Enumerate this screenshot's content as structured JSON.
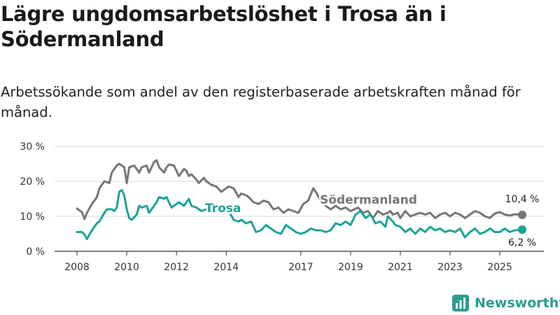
{
  "title": "Lägre ungdomsarbetslöshet i Trosa än i Södermanland",
  "subtitle": "Arbetssökande som andel av den registerbaserade arbetskraften månad för månad.",
  "brand": "Newsworthy",
  "colors": {
    "sodermanland": "#767676",
    "trosa": "#1ba396",
    "grid": "#d9d9d9",
    "axis": "#333333",
    "brand": "#2a9d8f"
  },
  "chart_data": {
    "type": "line",
    "title": "Lägre ungdomsarbetslöshet i Trosa än i Södermanland",
    "subtitle": "Arbetssökande som andel av den registerbaserade arbetskraften månad för månad.",
    "xlabel": "",
    "ylabel": "",
    "xlim": [
      2008.0,
      2025.9
    ],
    "ylim": [
      0,
      30
    ],
    "yticks": [
      0,
      10,
      20,
      30
    ],
    "ytick_labels": [
      "0 %",
      "10 %",
      "20 %",
      "30 %"
    ],
    "xticks": [
      2008,
      2010,
      2012,
      2014,
      2017,
      2019,
      2021,
      2023,
      2025
    ],
    "xtick_labels": [
      "2008",
      "2010",
      "2012",
      "2014",
      "2017",
      "2019",
      "2021",
      "2023",
      "2025"
    ],
    "grid": true,
    "series": [
      {
        "name": "Södermanland",
        "label": "Södermanland",
        "end_label": "10,4 %",
        "x": [
          2008.0,
          2008.2,
          2008.3,
          2008.4,
          2008.6,
          2008.8,
          2008.9,
          2009.1,
          2009.3,
          2009.4,
          2009.5,
          2009.6,
          2009.7,
          2009.8,
          2009.9,
          2010.0,
          2010.1,
          2010.3,
          2010.4,
          2010.5,
          2010.6,
          2010.8,
          2010.9,
          2011.1,
          2011.2,
          2011.3,
          2011.5,
          2011.6,
          2011.7,
          2011.9,
          2012.0,
          2012.1,
          2012.3,
          2012.4,
          2012.5,
          2012.6,
          2012.8,
          2012.9,
          2013.1,
          2013.2,
          2013.4,
          2013.6,
          2013.8,
          2013.9,
          2014.1,
          2014.3,
          2014.5,
          2014.6,
          2014.8,
          2014.9,
          2015.1,
          2015.3,
          2015.5,
          2015.7,
          2015.9,
          2016.1,
          2016.3,
          2016.5,
          2016.7,
          2016.9,
          2017.1,
          2017.3,
          2017.5,
          2017.6,
          2017.8,
          2018.0,
          2018.2,
          2018.4,
          2018.6,
          2018.8,
          2019.0,
          2019.3,
          2019.5,
          2019.7,
          2019.9,
          2020.1,
          2020.3,
          2020.5,
          2020.6,
          2020.7,
          2020.9,
          2021.0,
          2021.2,
          2021.4,
          2021.6,
          2021.8,
          2022.0,
          2022.2,
          2022.4,
          2022.6,
          2022.8,
          2023.0,
          2023.2,
          2023.4,
          2023.6,
          2023.8,
          2024.0,
          2024.2,
          2024.4,
          2024.6,
          2024.8,
          2025.0,
          2025.2,
          2025.4,
          2025.6,
          2025.9
        ],
        "values": [
          12.2,
          11.2,
          9.2,
          11.0,
          13.5,
          15.5,
          18.0,
          20.0,
          19.5,
          22.5,
          23.5,
          24.5,
          25.0,
          24.5,
          24.0,
          19.5,
          24.0,
          24.5,
          23.5,
          22.5,
          24.0,
          24.5,
          22.5,
          25.5,
          26.0,
          24.0,
          22.5,
          24.0,
          24.8,
          24.5,
          23.0,
          21.5,
          23.5,
          23.0,
          21.5,
          22.0,
          20.5,
          19.5,
          21.0,
          20.0,
          19.0,
          18.5,
          17.0,
          17.5,
          18.5,
          18.0,
          15.5,
          16.5,
          16.0,
          15.5,
          14.0,
          13.5,
          14.5,
          14.0,
          12.0,
          12.5,
          11.0,
          12.0,
          11.5,
          11.0,
          13.5,
          14.5,
          18.0,
          17.0,
          14.5,
          13.0,
          12.0,
          13.0,
          12.0,
          12.5,
          11.5,
          12.5,
          11.0,
          11.5,
          9.5,
          11.5,
          10.5,
          11.0,
          11.5,
          10.5,
          11.0,
          9.5,
          11.5,
          10.0,
          10.5,
          11.0,
          10.5,
          11.0,
          9.5,
          10.5,
          11.0,
          10.0,
          11.0,
          10.5,
          9.5,
          10.5,
          11.5,
          11.0,
          10.0,
          9.5,
          10.8,
          11.2,
          10.5,
          10.2,
          10.6,
          10.4
        ]
      },
      {
        "name": "Trosa",
        "label": "Trosa",
        "end_label": "6,2 %",
        "x": [
          2008.0,
          2008.2,
          2008.3,
          2008.4,
          2008.6,
          2008.8,
          2008.9,
          2009.1,
          2009.2,
          2009.4,
          2009.5,
          2009.6,
          2009.7,
          2009.8,
          2009.9,
          2010.0,
          2010.1,
          2010.2,
          2010.4,
          2010.5,
          2010.6,
          2010.8,
          2010.9,
          2011.1,
          2011.2,
          2011.3,
          2011.5,
          2011.6,
          2011.7,
          2011.8,
          2012.0,
          2012.1,
          2012.3,
          2012.4,
          2012.5,
          2012.6,
          2012.8,
          2012.9,
          2013.0,
          2013.2,
          2013.3,
          2013.5,
          2013.7,
          2013.9,
          2014.1,
          2014.3,
          2014.5,
          2014.6,
          2014.8,
          2015.0,
          2015.2,
          2015.4,
          2015.6,
          2015.8,
          2016.0,
          2016.2,
          2016.4,
          2016.6,
          2016.8,
          2017.0,
          2017.2,
          2017.4,
          2017.6,
          2017.8,
          2018.0,
          2018.2,
          2018.4,
          2018.6,
          2018.8,
          2019.0,
          2019.2,
          2019.4,
          2019.6,
          2019.8,
          2020.0,
          2020.2,
          2020.4,
          2020.5,
          2020.7,
          2020.8,
          2021.0,
          2021.2,
          2021.4,
          2021.6,
          2021.8,
          2022.0,
          2022.2,
          2022.4,
          2022.6,
          2022.8,
          2023.0,
          2023.2,
          2023.4,
          2023.6,
          2023.8,
          2024.0,
          2024.2,
          2024.4,
          2024.6,
          2024.8,
          2025.0,
          2025.2,
          2025.4,
          2025.6,
          2025.9
        ],
        "values": [
          5.5,
          5.5,
          4.8,
          3.5,
          6.0,
          8.0,
          8.5,
          11.0,
          12.0,
          12.0,
          11.5,
          12.5,
          17.0,
          17.5,
          16.0,
          12.0,
          9.5,
          9.0,
          10.5,
          13.0,
          12.5,
          13.0,
          11.0,
          13.0,
          14.0,
          15.5,
          15.0,
          15.5,
          14.0,
          12.5,
          13.5,
          14.0,
          13.0,
          14.0,
          15.0,
          13.0,
          12.5,
          12.0,
          11.5,
          12.0,
          12.0,
          12.5,
          12.0,
          11.5,
          11.5,
          9.0,
          8.5,
          9.0,
          8.0,
          8.5,
          5.5,
          6.0,
          7.5,
          6.5,
          5.5,
          5.0,
          7.5,
          6.5,
          5.5,
          5.0,
          5.5,
          6.5,
          6.0,
          6.0,
          5.5,
          6.0,
          8.0,
          7.5,
          8.5,
          7.5,
          10.5,
          11.5,
          9.5,
          10.5,
          8.0,
          8.5,
          7.0,
          10.0,
          8.5,
          7.5,
          7.0,
          5.5,
          6.5,
          5.0,
          6.5,
          5.5,
          7.0,
          6.0,
          6.5,
          5.5,
          6.0,
          5.5,
          6.5,
          4.0,
          5.5,
          6.5,
          5.0,
          5.5,
          6.5,
          5.5,
          5.5,
          6.5,
          5.5,
          6.0,
          6.2
        ]
      }
    ]
  }
}
